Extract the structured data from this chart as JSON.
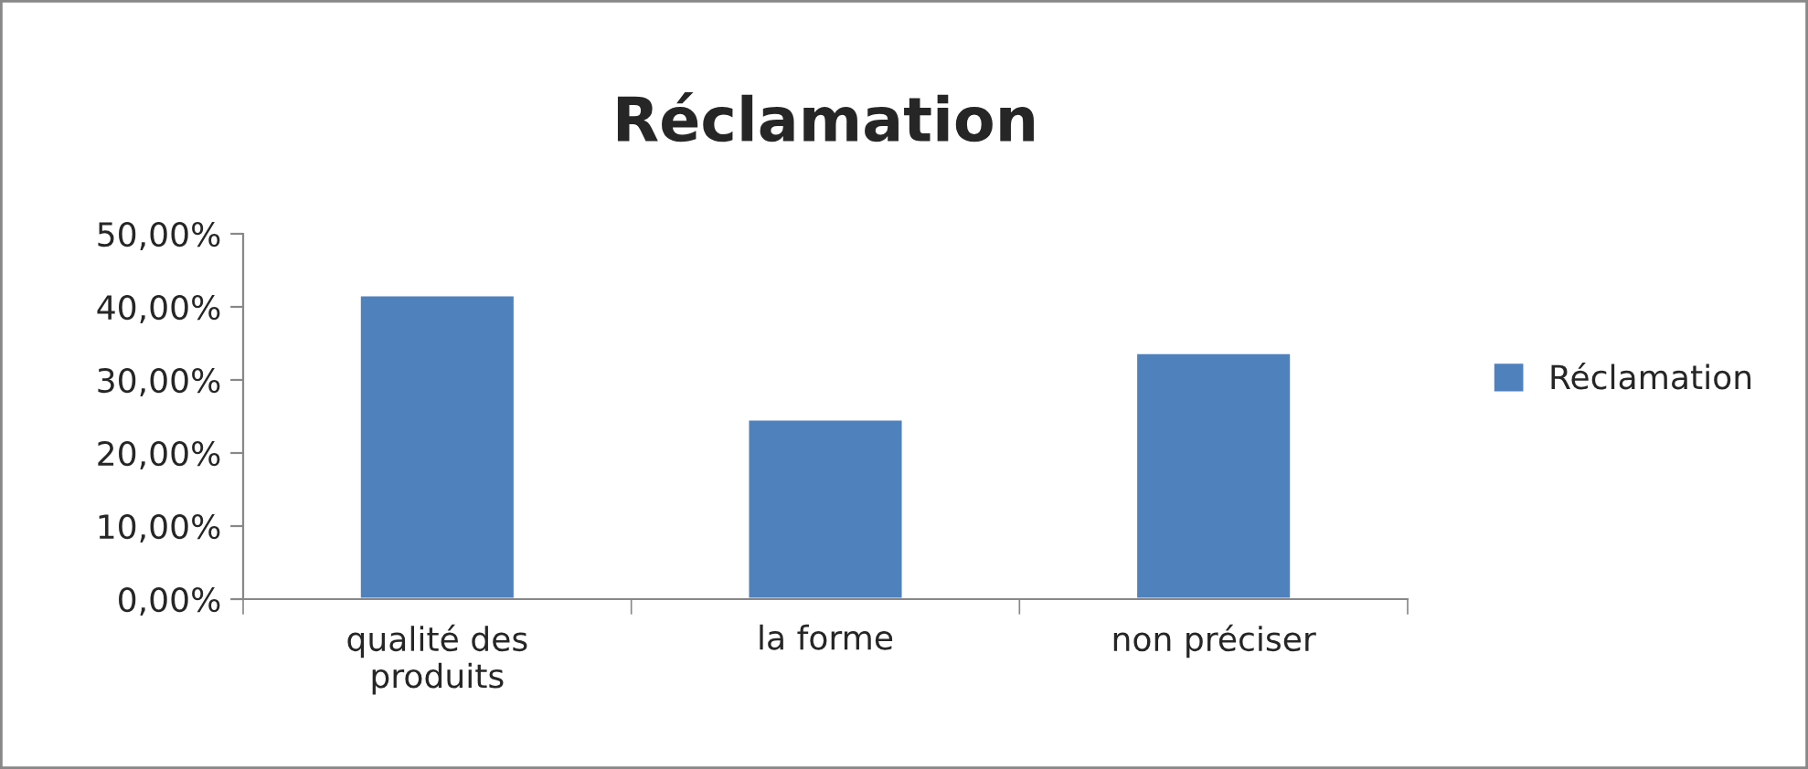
{
  "chart_data": {
    "type": "bar",
    "title": "Réclamation",
    "categories": [
      "qualité des\nproduits",
      "la forme",
      "non préciser"
    ],
    "series": [
      {
        "name": "Réclamation",
        "color": "#4f81bd",
        "values": [
          41.6,
          24.6,
          33.7
        ]
      }
    ],
    "ylim": [
      0,
      50
    ],
    "yticks": [
      {
        "value": 0,
        "label": "0,00%"
      },
      {
        "value": 10,
        "label": "10,00%"
      },
      {
        "value": 20,
        "label": "20,00%"
      },
      {
        "value": 30,
        "label": "30,00%"
      },
      {
        "value": 40,
        "label": "40,00%"
      },
      {
        "value": 50,
        "label": "50,00%"
      }
    ],
    "grid": false,
    "legend": "right"
  }
}
